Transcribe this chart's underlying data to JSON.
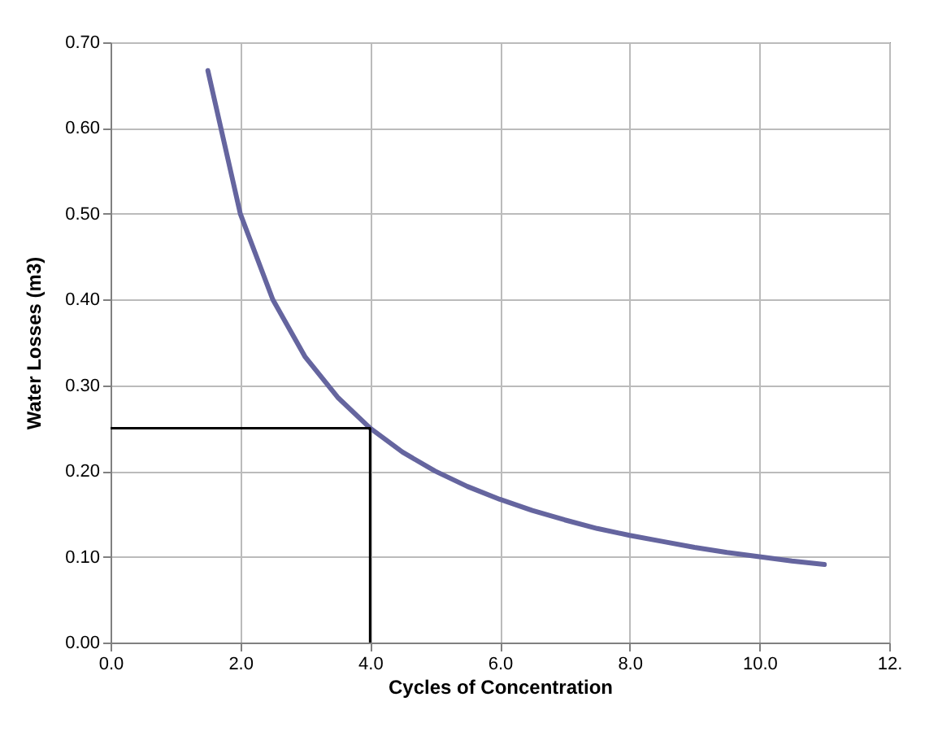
{
  "chart_data": {
    "type": "line",
    "xlabel": "Cycles of Concentration",
    "ylabel": "Water Losses (m3)",
    "xlim": [
      0,
      12
    ],
    "ylim": [
      0,
      0.7
    ],
    "xticks": [
      {
        "value": 0,
        "label": "0.0"
      },
      {
        "value": 2,
        "label": "2.0"
      },
      {
        "value": 4,
        "label": "4.0"
      },
      {
        "value": 6,
        "label": "6.0"
      },
      {
        "value": 8,
        "label": "8.0"
      },
      {
        "value": 10,
        "label": "10.0"
      },
      {
        "value": 12,
        "label": "12."
      }
    ],
    "yticks": [
      {
        "value": 0,
        "label": "0.00"
      },
      {
        "value": 0.1,
        "label": "0.10"
      },
      {
        "value": 0.2,
        "label": "0.20"
      },
      {
        "value": 0.3,
        "label": "0.30"
      },
      {
        "value": 0.4,
        "label": "0.40"
      },
      {
        "value": 0.5,
        "label": "0.50"
      },
      {
        "value": 0.6,
        "label": "0.60"
      },
      {
        "value": 0.7,
        "label": "0.70"
      }
    ],
    "grid": true,
    "series": [
      {
        "color": "#65659f",
        "x": [
          1.5,
          2,
          2.5,
          3,
          3.5,
          4,
          4.5,
          5,
          5.5,
          6,
          6.5,
          7,
          7.5,
          8,
          8.5,
          9,
          9.5,
          10,
          10.5,
          11
        ],
        "values": [
          0.667,
          0.5,
          0.4,
          0.333,
          0.286,
          0.25,
          0.222,
          0.2,
          0.182,
          0.167,
          0.154,
          0.143,
          0.133,
          0.125,
          0.118,
          0.111,
          0.105,
          0.1,
          0.095,
          0.091
        ]
      },
      {
        "color": "#000000",
        "x": [
          0,
          4,
          4
        ],
        "values": [
          0.25,
          0.25,
          0
        ]
      }
    ]
  }
}
